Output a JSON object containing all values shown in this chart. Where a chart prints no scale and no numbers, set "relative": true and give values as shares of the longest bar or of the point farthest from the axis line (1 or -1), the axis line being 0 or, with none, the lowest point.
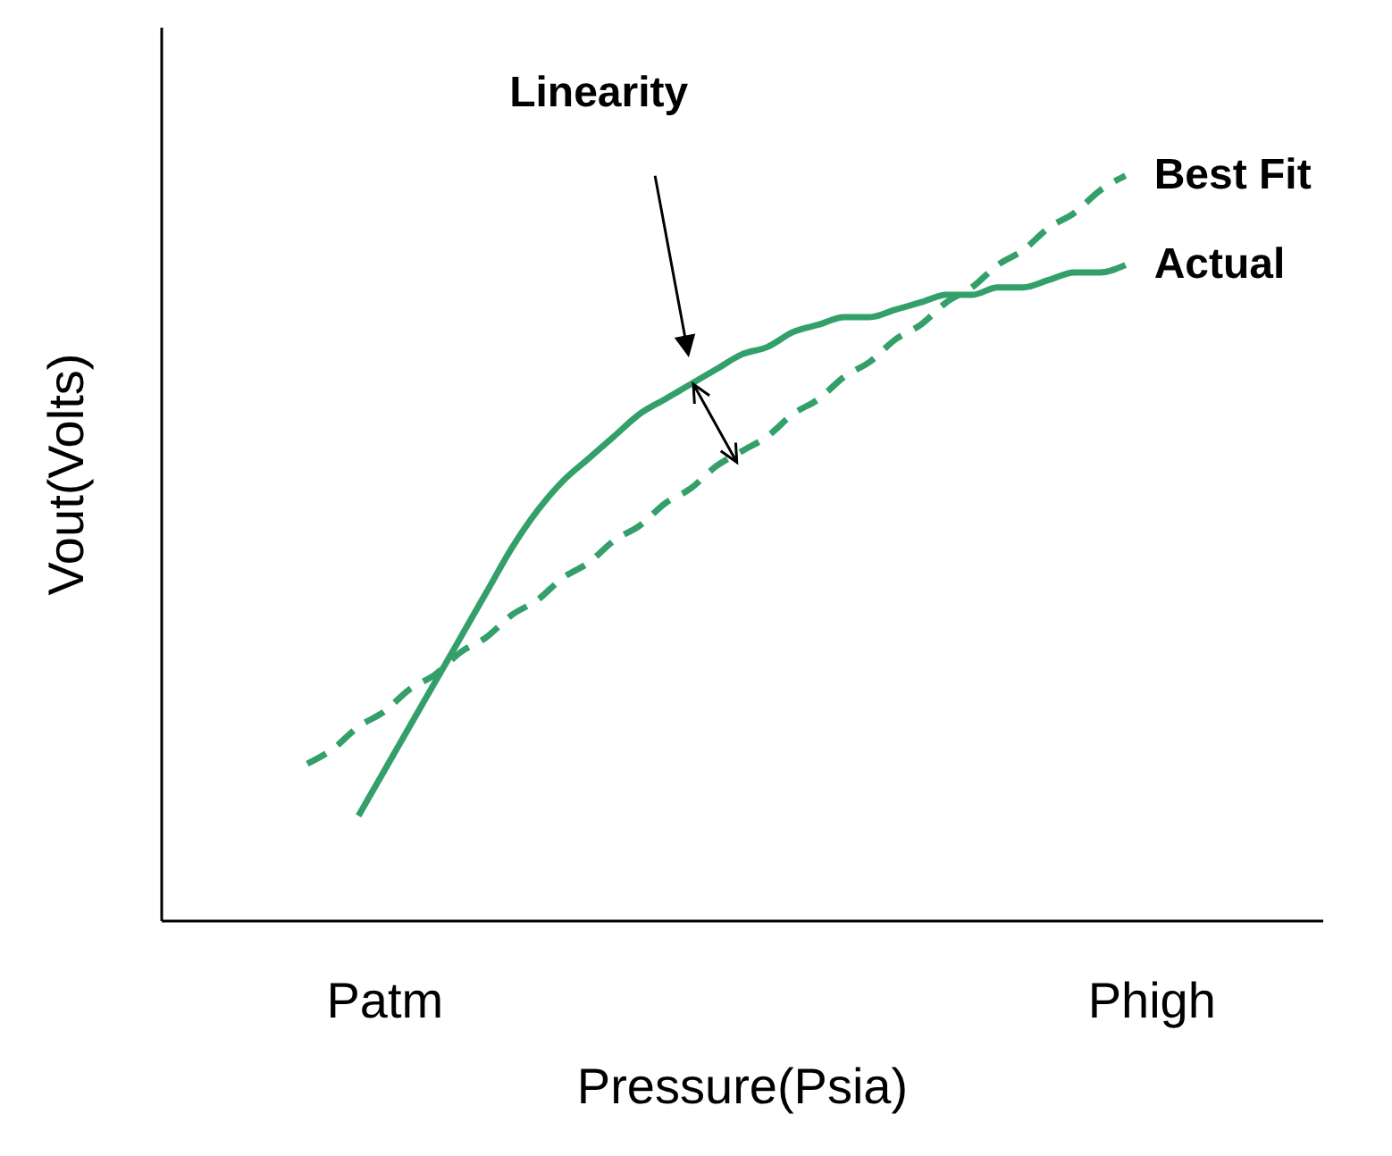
{
  "chart_data": {
    "type": "line",
    "relative": true,
    "xlabel": "Pressure(Psia)",
    "ylabel": "Vout(Volts)",
    "categories": [
      null,
      null,
      null,
      "Patm",
      null,
      null,
      null,
      null,
      null,
      null,
      null,
      null,
      null,
      null,
      null,
      null,
      null,
      null,
      null,
      null,
      null,
      null,
      null,
      null,
      null,
      null,
      null,
      null,
      null,
      null,
      null,
      null,
      null,
      "Phigh"
    ],
    "annotations": [
      "Linearity"
    ],
    "series": [
      {
        "name": "Best Fit",
        "color": "#33a06b",
        "line_style": "dashed",
        "values": [
          0.21,
          0.23,
          0.26,
          0.28,
          0.31,
          0.33,
          0.36,
          0.38,
          0.41,
          0.43,
          0.46,
          0.48,
          0.51,
          0.53,
          0.56,
          0.58,
          0.61,
          0.63,
          0.65,
          0.68,
          0.7,
          0.73,
          0.75,
          0.78,
          0.8,
          0.83,
          0.85,
          0.88,
          0.9,
          0.93,
          0.95,
          0.98,
          1.0,
          null
        ]
      },
      {
        "name": "Actual",
        "color": "#33a06b",
        "line_style": "solid",
        "values": [
          null,
          null,
          0.14,
          0.2,
          0.26,
          0.32,
          0.38,
          0.44,
          0.5,
          0.55,
          0.59,
          0.62,
          0.65,
          0.68,
          0.7,
          0.72,
          0.74,
          0.76,
          0.77,
          0.79,
          0.8,
          0.81,
          0.81,
          0.82,
          0.83,
          0.84,
          0.84,
          0.85,
          0.85,
          0.86,
          0.87,
          0.87,
          0.88,
          null
        ]
      }
    ]
  }
}
